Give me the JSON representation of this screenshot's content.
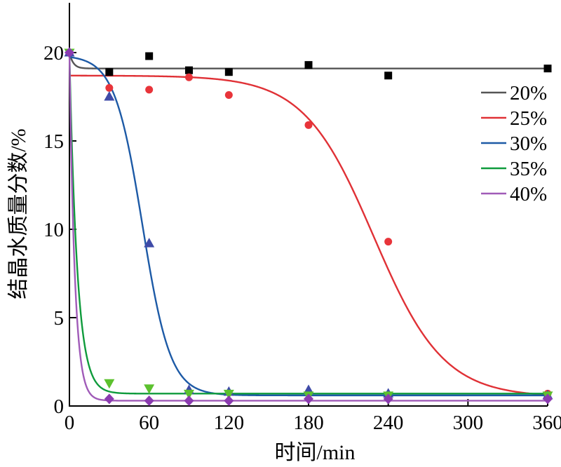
{
  "chart_data": {
    "type": "scatter",
    "xlabel": "时间/min",
    "ylabel": "结晶水质量分数/%",
    "xlim": [
      0,
      360
    ],
    "ylim": [
      0,
      22.5
    ],
    "xticks": [
      0,
      60,
      120,
      180,
      240,
      300,
      360
    ],
    "yticks": [
      0,
      5,
      10,
      15,
      20
    ],
    "grid": false,
    "legend_position": "right",
    "series": [
      {
        "name": "20%",
        "color": "#000000",
        "line_color": "#555555",
        "marker": "square",
        "x": [
          0,
          30,
          60,
          90,
          120,
          180,
          240,
          360
        ],
        "y": [
          20.0,
          18.9,
          19.8,
          19.0,
          18.9,
          19.3,
          18.7,
          19.1
        ],
        "fit": {
          "model": "exp",
          "y_end": 19.1,
          "y_start": 20.0,
          "rate": 0.35
        }
      },
      {
        "name": "25%",
        "color": "#e8343a",
        "line_color": "#e03136",
        "marker": "circle",
        "x": [
          0,
          30,
          60,
          90,
          120,
          180,
          240,
          360
        ],
        "y": [
          20.0,
          18.0,
          17.9,
          18.6,
          17.6,
          15.9,
          9.3,
          0.7
        ],
        "fit": {
          "model": "logistic",
          "top": 18.7,
          "bottom": 0.5,
          "x0": 229,
          "k": 0.038
        }
      },
      {
        "name": "30%",
        "color": "#3f4ba8",
        "line_color": "#1d5aa6",
        "marker": "triangle",
        "x": [
          0,
          30,
          60,
          90,
          120,
          180,
          240,
          360
        ],
        "y": [
          20.0,
          17.5,
          9.2,
          0.9,
          0.8,
          0.9,
          0.7,
          0.6
        ],
        "fit": {
          "model": "logistic",
          "top": 19.85,
          "bottom": 0.6,
          "x0": 55,
          "k": 0.095
        }
      },
      {
        "name": "35%",
        "color": "#5cc12e",
        "line_color": "#0f9b3c",
        "marker": "triangle-down",
        "x": [
          0,
          30,
          60,
          90,
          120,
          180,
          240,
          360
        ],
        "y": [
          20.0,
          1.3,
          1.0,
          0.7,
          0.7,
          0.6,
          0.6,
          0.6
        ],
        "fit": {
          "model": "exp",
          "y_end": 0.7,
          "y_start": 20.0,
          "rate": 0.17
        }
      },
      {
        "name": "40%",
        "color": "#8b3bb0",
        "line_color": "#a05bb8",
        "marker": "diamond",
        "x": [
          0,
          30,
          60,
          90,
          120,
          180,
          240,
          360
        ],
        "y": [
          20.0,
          0.4,
          0.3,
          0.3,
          0.3,
          0.4,
          0.4,
          0.4
        ],
        "fit": {
          "model": "exp",
          "y_end": 0.3,
          "y_start": 20.0,
          "rate": 0.25
        }
      }
    ]
  }
}
